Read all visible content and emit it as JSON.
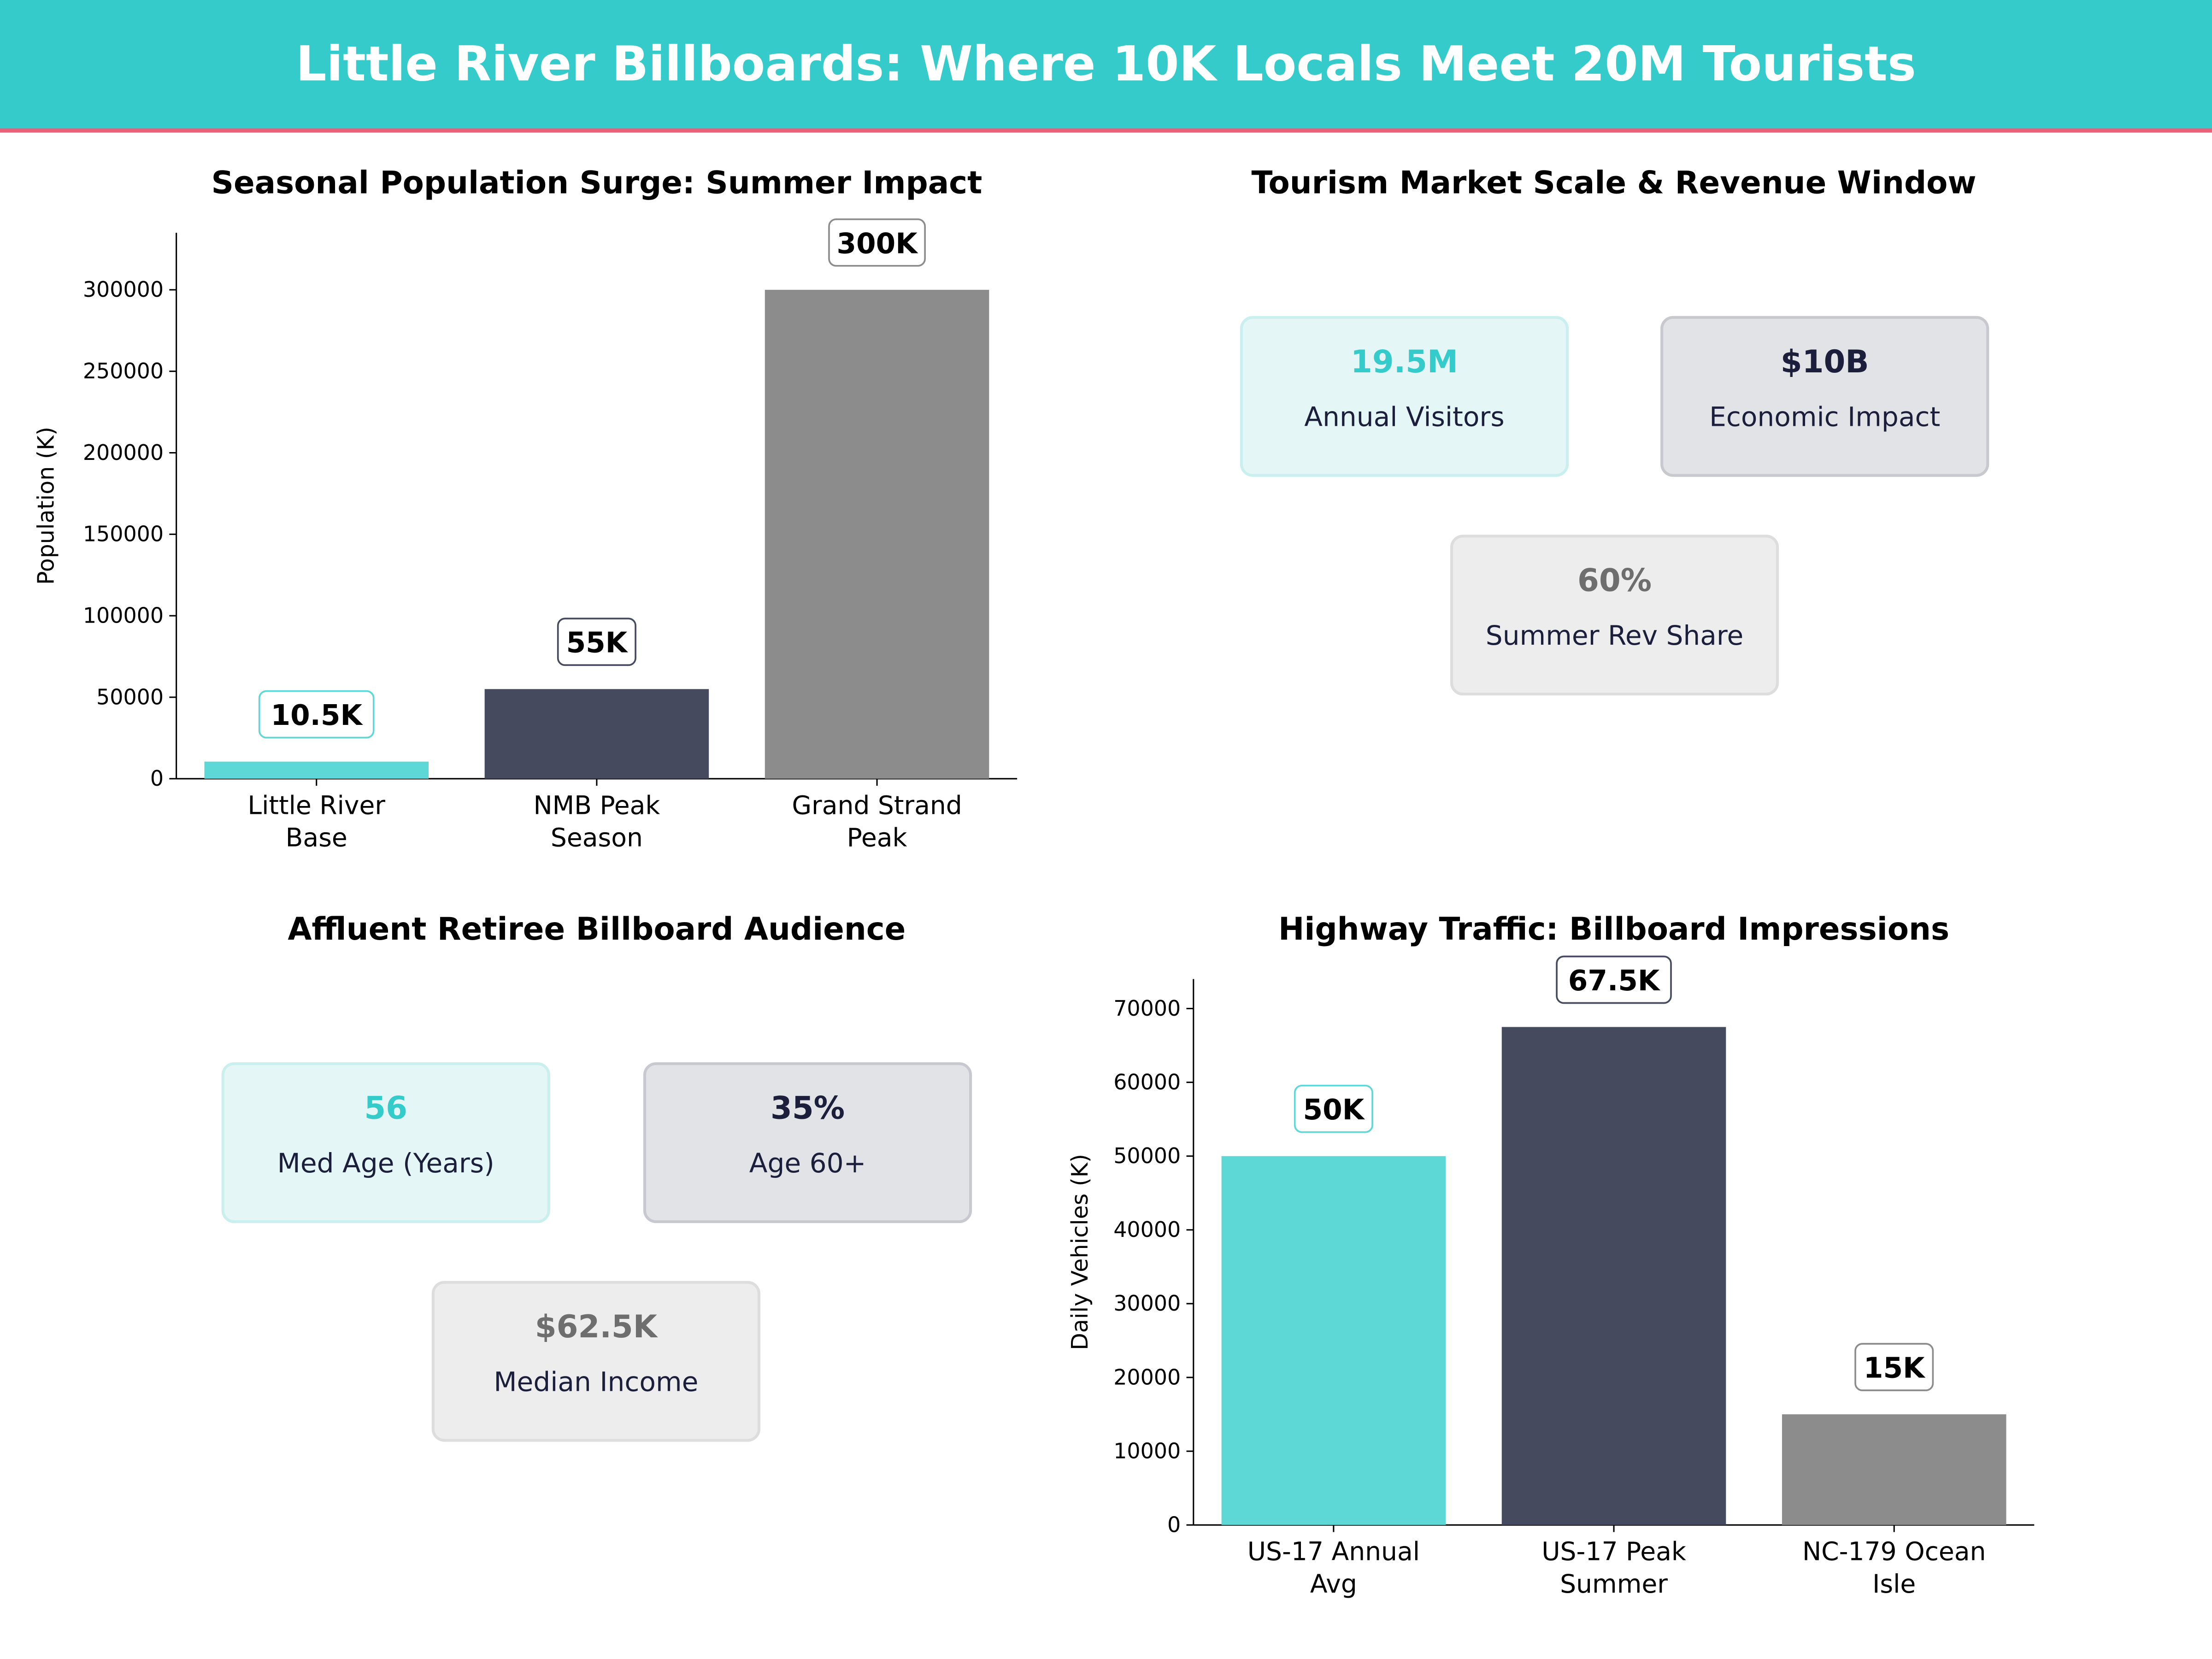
{
  "header": {
    "title": "Little River Billboards: Where 10K Locals Meet 20M Tourists",
    "bg": "#36CBCB",
    "accent_line": "#E8607A"
  },
  "chart_data": [
    {
      "type": "bar",
      "title": "Seasonal Population Surge: Summer Impact",
      "xlabel": "",
      "ylabel": "Population (K)",
      "categories": [
        "Little River\nBase",
        "NMB Peak\nSeason",
        "Grand Strand\nPeak"
      ],
      "values": [
        10500,
        55000,
        300000
      ],
      "data_labels": [
        "10.5K",
        "55K",
        "300K"
      ],
      "colors": [
        "#5DD8D6",
        "#454A5F",
        "#8C8C8C"
      ],
      "label_borders": [
        "#5DD8D6",
        "#454A5F",
        "#8C8C8C"
      ],
      "yticks": [
        0,
        50000,
        100000,
        150000,
        200000,
        250000,
        300000
      ],
      "ylim": [
        0,
        335000
      ],
      "grid": false
    },
    {
      "type": "bar",
      "title": "Highway Traffic: Billboard Impressions",
      "xlabel": "",
      "ylabel": "Daily Vehicles (K)",
      "categories": [
        "US-17 Annual\nAvg",
        "US-17 Peak\nSummer",
        "NC-179 Ocean\nIsle"
      ],
      "values": [
        50000,
        67500,
        15000
      ],
      "data_labels": [
        "50K",
        "67.5K",
        "15K"
      ],
      "colors": [
        "#5DD8D6",
        "#454A5F",
        "#8C8C8C"
      ],
      "label_borders": [
        "#5DD8D6",
        "#454A5F",
        "#8C8C8C"
      ],
      "yticks": [
        0,
        10000,
        20000,
        30000,
        40000,
        50000,
        60000,
        70000
      ],
      "ylim": [
        0,
        74000
      ],
      "grid": false
    }
  ],
  "tourism": {
    "title": "Tourism Market Scale & Revenue Window",
    "cards": [
      {
        "value": "19.5M",
        "label": "Annual Visitors"
      },
      {
        "value": "$10B",
        "label": "Economic Impact"
      },
      {
        "value": "60%",
        "label": "Summer Rev Share"
      }
    ]
  },
  "audience": {
    "title": "Affluent Retiree Billboard Audience",
    "cards": [
      {
        "value": "56",
        "label": "Med Age (Years)"
      },
      {
        "value": "35%",
        "label": "Age 60+"
      },
      {
        "value": "$62.5K",
        "label": "Median Income"
      }
    ]
  },
  "card_styles": [
    {
      "bg": "#E4F6F6",
      "border": "#C9EFEF",
      "value_color": "#36CBCB"
    },
    {
      "bg": "#E2E3E7",
      "border": "#C8C9CE",
      "value_color": "#1B1F3B"
    },
    {
      "bg": "#EDEDED",
      "border": "#DDDDDD",
      "value_color": "#6E6E6E"
    }
  ]
}
